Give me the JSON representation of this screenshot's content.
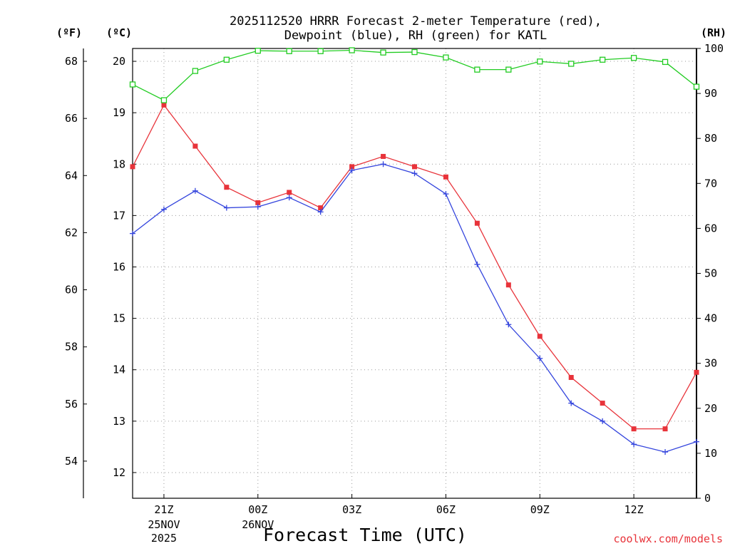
{
  "chart_data": {
    "type": "line",
    "title": "2025112520 HRRR Forecast 2-meter Temperature (red),",
    "subtitle": "Dewpoint (blue), RH (green) for KATL",
    "xlabel": "Forecast Time (UTC)",
    "credit": "coolwx.com/models",
    "units": {
      "fahrenheit": "(ºF)",
      "celsius": "(ºC)",
      "rh": "(RH)"
    },
    "x": [
      20,
      21,
      22,
      23,
      24,
      25,
      26,
      27,
      28,
      29,
      30,
      31,
      32,
      33,
      34,
      35,
      36,
      37,
      38
    ],
    "xlim": [
      20,
      38
    ],
    "x_ticks": [
      {
        "x": 21,
        "label": "21Z",
        "sub1": "25NOV",
        "sub2": "2025"
      },
      {
        "x": 24,
        "label": "00Z",
        "sub1": "26NOV",
        "sub2": ""
      },
      {
        "x": 27,
        "label": "03Z",
        "sub1": "",
        "sub2": ""
      },
      {
        "x": 30,
        "label": "06Z",
        "sub1": "",
        "sub2": ""
      },
      {
        "x": 33,
        "label": "09Z",
        "sub1": "",
        "sub2": ""
      },
      {
        "x": 36,
        "label": "12Z",
        "sub1": "",
        "sub2": ""
      }
    ],
    "celsius_axis": {
      "range": [
        11.5,
        20.25
      ],
      "ticks": [
        "12",
        "13",
        "14",
        "15",
        "16",
        "17",
        "18",
        "19",
        "20"
      ]
    },
    "fahrenheit_axis": {
      "range": [
        52.7,
        68.45
      ],
      "ticks": [
        "54",
        "56",
        "58",
        "60",
        "62",
        "64",
        "66",
        "68"
      ]
    },
    "rh_axis": {
      "range": [
        0,
        100
      ],
      "ticks": [
        "0",
        "10",
        "20",
        "30",
        "40",
        "50",
        "60",
        "70",
        "80",
        "90",
        "100"
      ]
    },
    "series": [
      {
        "name": "Temperature",
        "axis": "celsius",
        "color": "#e8333a",
        "marker": "filled-square",
        "values": [
          17.95,
          19.15,
          18.35,
          17.55,
          17.25,
          17.45,
          17.15,
          17.95,
          18.15,
          17.95,
          17.75,
          16.85,
          15.65,
          14.65,
          13.85,
          13.35,
          12.85,
          12.85,
          13.95
        ]
      },
      {
        "name": "Dewpoint",
        "axis": "celsius",
        "color": "#3344dd",
        "marker": "plus",
        "values": [
          16.65,
          17.12,
          17.48,
          17.15,
          17.17,
          17.35,
          17.07,
          17.88,
          18.0,
          17.82,
          17.42,
          16.05,
          14.88,
          14.22,
          13.35,
          13.0,
          12.55,
          12.4,
          12.6
        ]
      },
      {
        "name": "RH",
        "axis": "rh",
        "color": "#22cc22",
        "marker": "open-square",
        "values": [
          92,
          88.5,
          95,
          97.5,
          99.5,
          99.4,
          99.4,
          99.6,
          99.1,
          99.2,
          98.0,
          95.3,
          95.3,
          97.1,
          96.6,
          97.5,
          97.9,
          97.0,
          91.5
        ]
      }
    ]
  }
}
